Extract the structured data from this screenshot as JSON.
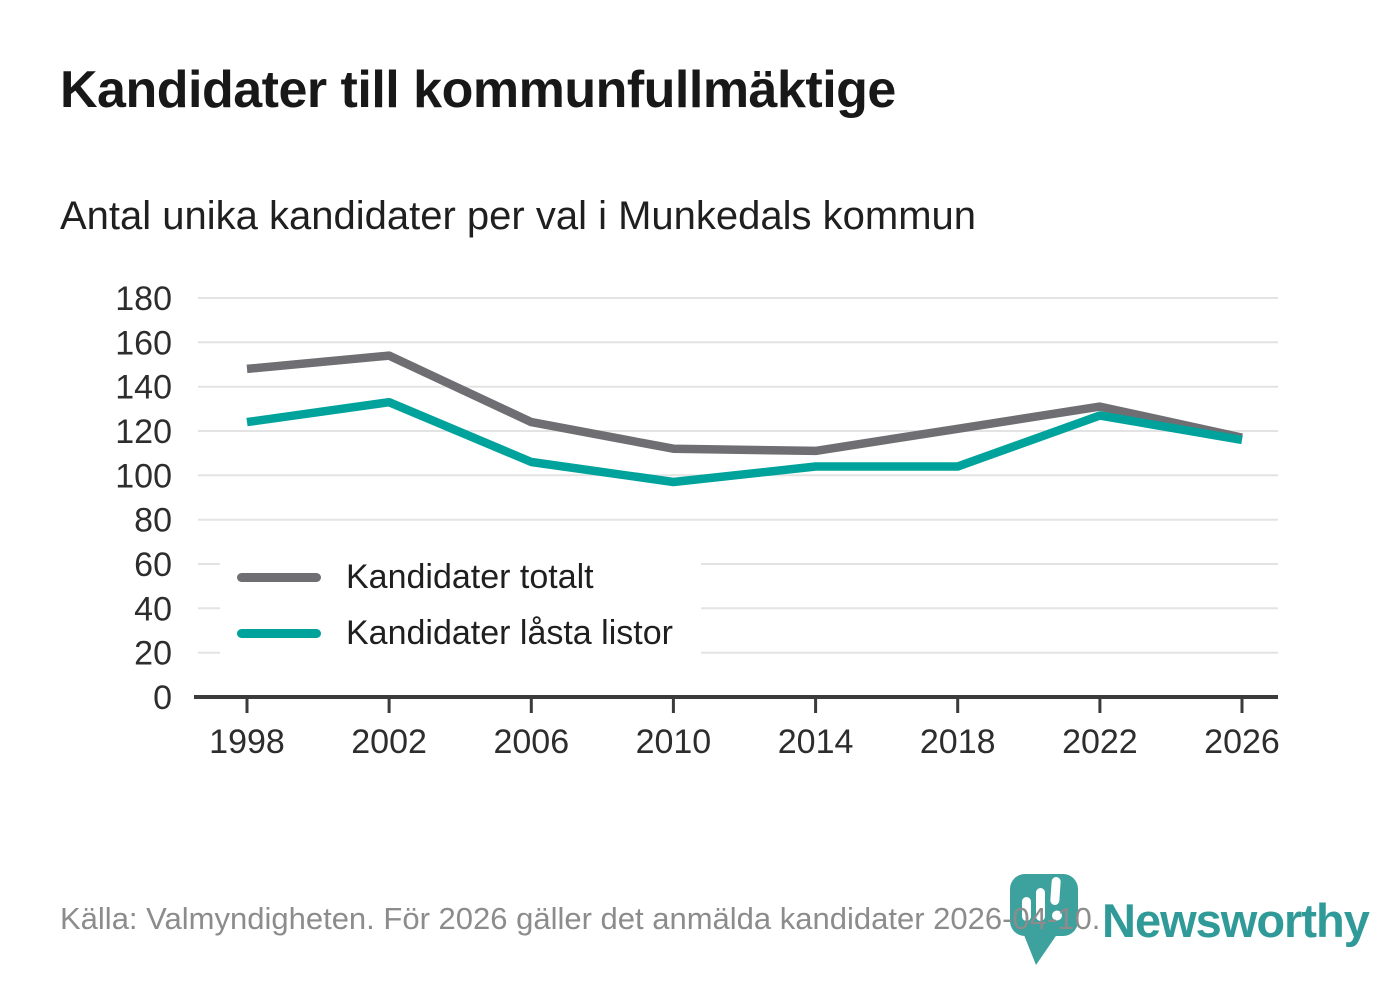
{
  "header": {
    "title": "Kandidater till kommunfullmäktige",
    "subtitle": "Antal unika kandidater per val i Munkedals kommun"
  },
  "chart_data": {
    "type": "line",
    "title": "Kandidater till kommunfullmäktige",
    "subtitle": "Antal unika kandidater per val i Munkedals kommun",
    "x": [
      1998,
      2002,
      2006,
      2010,
      2014,
      2018,
      2022,
      2026
    ],
    "series": [
      {
        "name": "Kandidater totalt",
        "color": "#6f6f73",
        "values": [
          148,
          154,
          124,
          112,
          111,
          121,
          131,
          117
        ]
      },
      {
        "name": "Kandidater låsta listor",
        "color": "#00a39b",
        "values": [
          124,
          133,
          106,
          97,
          104,
          104,
          127,
          116
        ]
      }
    ],
    "xlabel": "",
    "ylabel": "",
    "ylim": [
      0,
      180
    ],
    "ytick_step": 20,
    "grid": "horizontal",
    "legend_position": "inside-bottom-left"
  },
  "footer": {
    "source": "Källa: Valmyndigheten. För 2026 gäller det anmälda kandidater 2026-04-10.",
    "brand": "Newsworthy"
  },
  "colors": {
    "grid": "#e3e3e3",
    "axis": "#3b3b3b",
    "axis_text": "#2d2d2d",
    "title_text": "#181818",
    "source_gray": "#8c8c8c",
    "brand_teal": "#2f9a97",
    "pin_teal": "#3da19e"
  }
}
